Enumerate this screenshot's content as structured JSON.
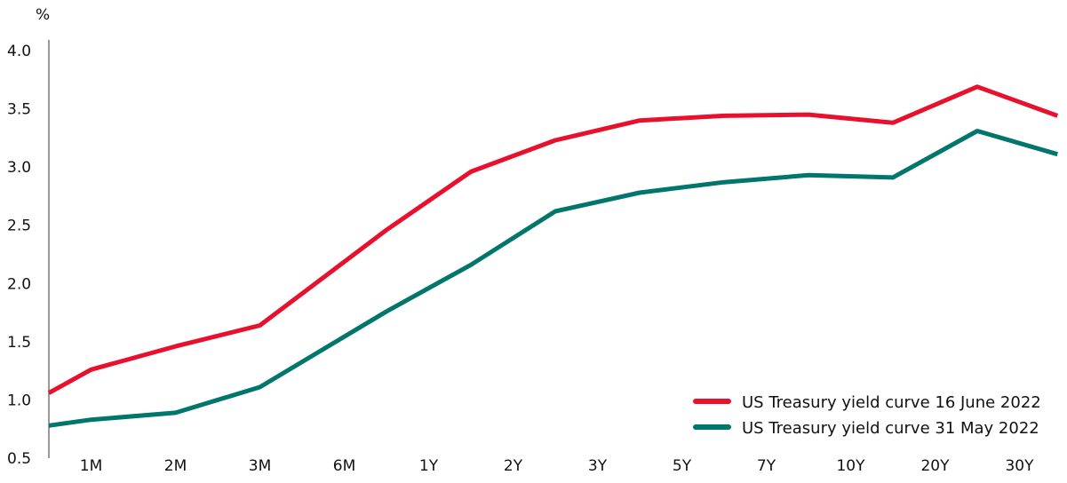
{
  "chart_data": {
    "type": "line",
    "y_unit": "%",
    "ylim": [
      0.5,
      4.0
    ],
    "y_ticks": [
      "0.5",
      "1.0",
      "1.5",
      "2.0",
      "2.5",
      "3.0",
      "3.5",
      "4.0"
    ],
    "categories": [
      "1M",
      "2M",
      "3M",
      "6M",
      "1Y",
      "2Y",
      "3Y",
      "5Y",
      "7Y",
      "10Y",
      "20Y",
      "30Y"
    ],
    "grid": false,
    "legend_position": "bottom-right",
    "series": [
      {
        "name": "US Treasury yield curve 16 June 2022",
        "color": "#e8112d",
        "x": [
          0,
          0.5,
          1.5,
          2.5,
          4.0,
          5.0,
          6.0,
          7.0,
          8.0,
          9.0,
          10.0,
          11.0,
          11.95
        ],
        "values": [
          1.06,
          1.26,
          1.46,
          1.64,
          2.46,
          2.96,
          3.23,
          3.4,
          3.44,
          3.45,
          3.38,
          3.69,
          3.44
        ]
      },
      {
        "name": "US Treasury yield curve 31 May 2022",
        "color": "#00766c",
        "x": [
          0,
          0.5,
          1.5,
          2.5,
          4.0,
          5.0,
          6.0,
          7.0,
          8.0,
          9.0,
          10.0,
          11.0,
          11.95
        ],
        "values": [
          0.78,
          0.83,
          0.89,
          1.11,
          1.76,
          2.16,
          2.62,
          2.78,
          2.87,
          2.93,
          2.91,
          3.31,
          3.11
        ]
      }
    ]
  }
}
